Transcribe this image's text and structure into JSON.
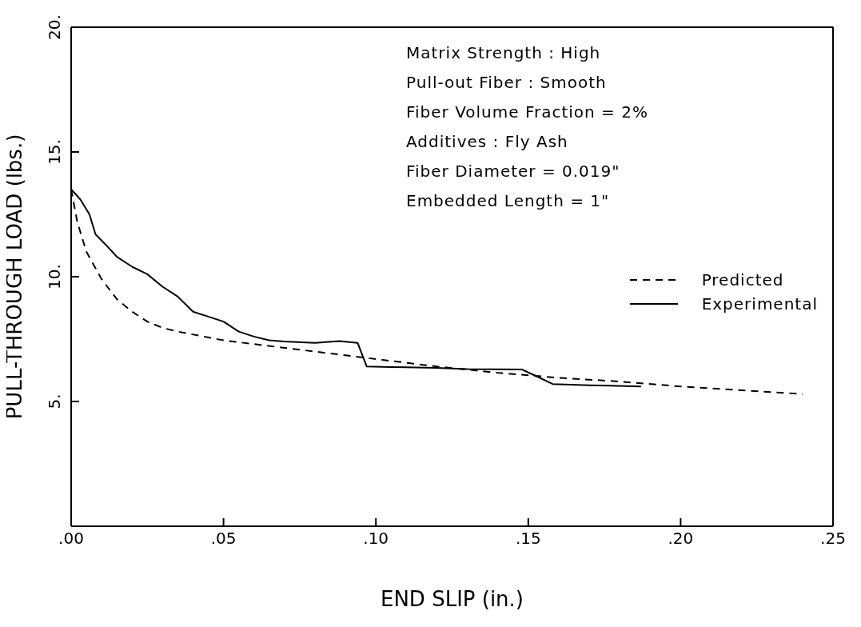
{
  "chart_data": {
    "type": "line",
    "xlabel": "END  SLIP  (in.)",
    "ylabel": "PULL-THROUGH LOAD  (lbs.)",
    "xlim": [
      0,
      0.25
    ],
    "xticks": [
      {
        "value": 0,
        "label": ".00"
      },
      {
        "value": 0.05,
        "label": ".05"
      },
      {
        "value": 0.1,
        "label": ".10"
      },
      {
        "value": 0.15,
        "label": ".15"
      },
      {
        "value": 0.2,
        "label": ".20"
      },
      {
        "value": 0.25,
        "label": ".25"
      }
    ],
    "ylim": [
      0,
      20
    ],
    "yticks": [
      {
        "value": 5,
        "label": "5."
      },
      {
        "value": 10,
        "label": "10."
      },
      {
        "value": 15,
        "label": "15."
      },
      {
        "value": 20,
        "label": "20."
      }
    ],
    "legend": "right",
    "marker": "none",
    "annotations": [
      "Matrix Strength : High",
      "Pull-out Fiber : Smooth",
      "Fiber Volume Fraction = 2%",
      "Additives : Fly Ash",
      "Fiber Diameter = 0.019\"",
      "Embedded Length = 1\""
    ],
    "series": [
      {
        "name": "Predicted",
        "color": "#000000",
        "line_style": "dashed",
        "x": [
          0,
          0.002,
          0.005,
          0.01,
          0.015,
          0.02,
          0.025,
          0.03,
          0.035,
          0.05,
          0.07,
          0.09,
          0.1,
          0.12,
          0.14,
          0.16,
          0.18,
          0.2,
          0.22,
          0.24
        ],
        "values": [
          13.5,
          12.2,
          11,
          9.9,
          9.1,
          8.6,
          8.2,
          7.95,
          7.8,
          7.45,
          7.15,
          6.85,
          6.7,
          6.4,
          6.15,
          5.95,
          5.8,
          5.6,
          5.45,
          5.3
        ]
      },
      {
        "name": "Experimental",
        "color": "#000000",
        "line_style": "solid",
        "x": [
          0,
          0.003,
          0.006,
          0.008,
          0.012,
          0.015,
          0.02,
          0.025,
          0.03,
          0.035,
          0.04,
          0.045,
          0.05,
          0.055,
          0.06,
          0.065,
          0.07,
          0.08,
          0.088,
          0.094,
          0.097,
          0.105,
          0.12,
          0.13,
          0.148,
          0.152,
          0.158,
          0.17,
          0.187
        ],
        "values": [
          13.5,
          13.1,
          12.5,
          11.7,
          11.2,
          10.8,
          10.4,
          10.1,
          9.6,
          9.2,
          8.6,
          8.4,
          8.2,
          7.8,
          7.6,
          7.45,
          7.4,
          7.35,
          7.42,
          7.35,
          6.4,
          6.38,
          6.35,
          6.3,
          6.28,
          6.05,
          5.7,
          5.65,
          5.6
        ]
      }
    ]
  }
}
